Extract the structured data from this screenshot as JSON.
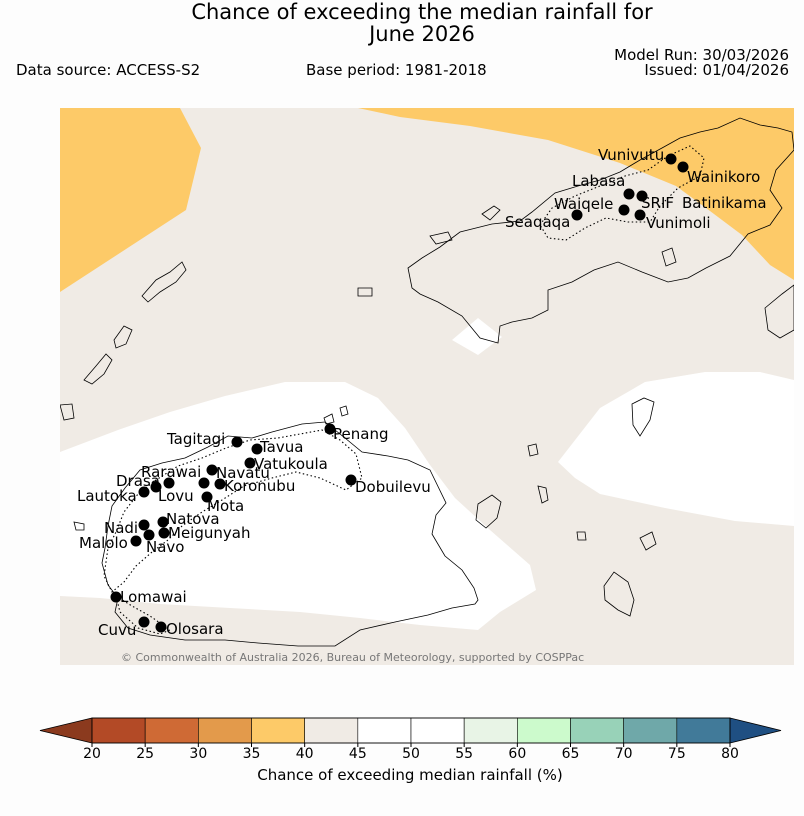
{
  "header": {
    "title_line1": "Chance of exceeding the median rainfall for",
    "title_line2": "June 2026",
    "data_source": "Data source: ACCESS-S2",
    "base_period": "Base period: 1981-2018",
    "model_run": "Model Run: 30/03/2026",
    "issued": "Issued: 01/04/2026"
  },
  "map": {
    "copyright": "© Commonwealth of Australia 2026, Bureau of Meteorology, supported by COSPPac",
    "colors": {
      "below_35_40": "#fdca68",
      "band_40_45": "#f0ebe5",
      "band_45_55": "#ffffff"
    },
    "stations": [
      {
        "name": "Vunivutu"
      },
      {
        "name": "Wainikoro"
      },
      {
        "name": "Labasa"
      },
      {
        "name": "SRIF"
      },
      {
        "name": "Batinikama"
      },
      {
        "name": "Waiqele"
      },
      {
        "name": "Seaqaqa"
      },
      {
        "name": "Vunimoli"
      },
      {
        "name": "Penang"
      },
      {
        "name": "Tagitagi"
      },
      {
        "name": "Tavua"
      },
      {
        "name": "Vatukoula"
      },
      {
        "name": "Rarawai"
      },
      {
        "name": "Navatu"
      },
      {
        "name": "Drasa"
      },
      {
        "name": "Koronubu"
      },
      {
        "name": "Lautoka"
      },
      {
        "name": "Lovu"
      },
      {
        "name": "Dobuilevu"
      },
      {
        "name": "Mota"
      },
      {
        "name": "Natova"
      },
      {
        "name": "Nadi"
      },
      {
        "name": "Meigunyah"
      },
      {
        "name": "Malolo"
      },
      {
        "name": "Navo"
      },
      {
        "name": "Lomawai"
      },
      {
        "name": "Cuvu"
      },
      {
        "name": "Olosara"
      }
    ]
  },
  "colorbar": {
    "title": "Chance of exceeding median rainfall (%)",
    "ticks": [
      "20",
      "25",
      "30",
      "35",
      "40",
      "45",
      "50",
      "55",
      "60",
      "65",
      "70",
      "75",
      "80"
    ],
    "colors": [
      "#b34a26",
      "#cf6a35",
      "#e39a4b",
      "#fdca68",
      "#f0ebe5",
      "#ffffff",
      "#ffffff",
      "#e8f4e6",
      "#ccfacc",
      "#98d2b8",
      "#6fa8a9",
      "#417a99"
    ],
    "low_extend_color": "#8b3a1e",
    "high_extend_color": "#1f4f82"
  }
}
